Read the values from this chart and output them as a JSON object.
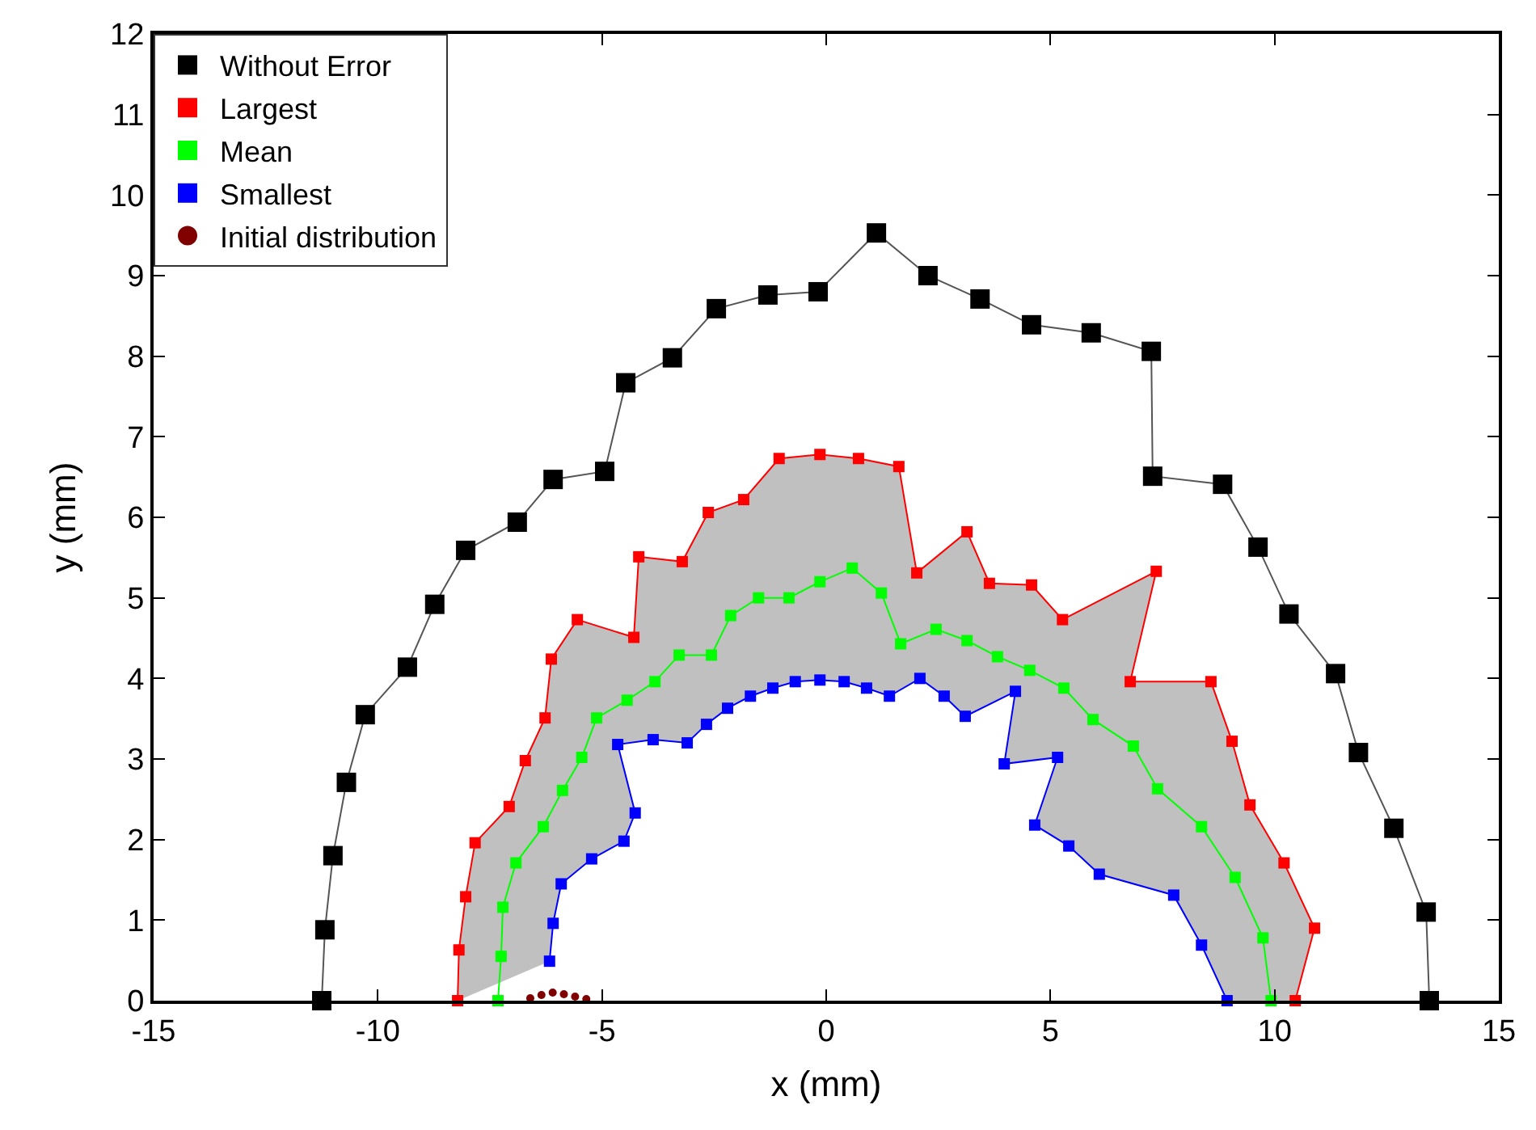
{
  "chart_data": {
    "type": "line",
    "xlabel": "x (mm)",
    "ylabel": "y (mm)",
    "xlim": [
      -15,
      15
    ],
    "xticks": [
      -15,
      -10,
      -5,
      0,
      5,
      10,
      15
    ],
    "ylim": [
      0,
      12
    ],
    "yticks": [
      0,
      1,
      2,
      3,
      4,
      5,
      6,
      7,
      8,
      9,
      10,
      11,
      12
    ],
    "legend": "top left",
    "marker": "square",
    "line_style": "solid",
    "series": [
      {
        "name": "Without Error",
        "color": "#000000",
        "x": [
          -11.25,
          -11.18,
          -11.0,
          -10.7,
          -10.28,
          -9.34,
          -8.73,
          -8.04,
          -6.89,
          -6.09,
          -4.94,
          -4.47,
          -3.43,
          -2.45,
          -1.3,
          -0.18,
          1.12,
          2.27,
          3.43,
          4.58,
          5.91,
          7.25,
          7.28,
          8.84,
          9.63,
          10.32,
          11.36,
          11.87,
          12.66,
          13.38,
          13.45
        ],
        "values": [
          0,
          0.88,
          1.8,
          2.71,
          3.55,
          4.14,
          4.92,
          5.59,
          5.94,
          6.47,
          6.57,
          7.67,
          7.98,
          8.59,
          8.76,
          8.8,
          9.53,
          9.0,
          8.71,
          8.39,
          8.29,
          8.06,
          6.51,
          6.41,
          5.63,
          4.8,
          4.06,
          3.08,
          2.14,
          1.1,
          0
        ]
      },
      {
        "name": "Largest",
        "color": "#ff0000",
        "x": [
          -8.22,
          -8.19,
          -8.04,
          -7.83,
          -7.07,
          -6.71,
          -6.27,
          -6.13,
          -5.55,
          -4.29,
          -4.18,
          -3.21,
          -2.63,
          -1.84,
          -1.05,
          -0.14,
          0.72,
          1.62,
          2.02,
          3.14,
          3.64,
          4.58,
          5.27,
          7.36,
          6.78,
          8.58,
          9.05,
          9.45,
          10.21,
          10.89,
          10.46
        ],
        "values": [
          0,
          0.63,
          1.29,
          1.96,
          2.41,
          2.98,
          3.51,
          4.24,
          4.73,
          4.51,
          5.51,
          5.45,
          6.06,
          6.22,
          6.73,
          6.78,
          6.73,
          6.63,
          5.31,
          5.82,
          5.18,
          5.16,
          4.73,
          5.33,
          3.96,
          3.96,
          3.22,
          2.43,
          1.71,
          0.9,
          0
        ]
      },
      {
        "name": "Mean",
        "color": "#00ff00",
        "x": [
          -7.32,
          -7.25,
          -7.21,
          -6.92,
          -6.31,
          -5.88,
          -5.45,
          -5.12,
          -4.44,
          -3.82,
          -3.28,
          -2.56,
          -2.13,
          -1.51,
          -0.83,
          -0.14,
          0.58,
          1.23,
          1.66,
          2.45,
          3.14,
          3.82,
          4.54,
          5.3,
          5.95,
          6.85,
          7.39,
          8.37,
          9.12,
          9.74,
          9.92
        ],
        "values": [
          0,
          0.55,
          1.16,
          1.71,
          2.16,
          2.61,
          3.02,
          3.51,
          3.73,
          3.96,
          4.29,
          4.29,
          4.78,
          5.0,
          5.0,
          5.2,
          5.37,
          5.06,
          4.43,
          4.61,
          4.47,
          4.27,
          4.1,
          3.88,
          3.49,
          3.16,
          2.63,
          2.16,
          1.53,
          0.78,
          0
        ]
      },
      {
        "name": "Smallest",
        "color": "#0000ff",
        "x": [
          -6.17,
          -6.09,
          -5.91,
          -5.23,
          -4.51,
          -4.26,
          -4.65,
          -3.86,
          -3.1,
          -2.67,
          -2.2,
          -1.69,
          -1.19,
          -0.69,
          -0.14,
          0.4,
          0.9,
          1.41,
          2.09,
          2.63,
          3.1,
          4.22,
          3.97,
          5.16,
          4.65,
          5.41,
          6.09,
          7.75,
          8.37,
          8.94
        ],
        "values": [
          0.49,
          0.96,
          1.45,
          1.76,
          1.98,
          2.33,
          3.18,
          3.24,
          3.2,
          3.43,
          3.63,
          3.78,
          3.88,
          3.96,
          3.98,
          3.96,
          3.88,
          3.78,
          4.0,
          3.78,
          3.53,
          3.84,
          2.94,
          3.02,
          2.18,
          1.92,
          1.57,
          1.31,
          0.69,
          0
        ]
      },
      {
        "name": "Initial distribution",
        "type": "scatter",
        "marker": "circle",
        "color": "#800000",
        "x": [
          -6.6,
          -6.35,
          -6.1,
          -5.85,
          -5.6,
          -5.35
        ],
        "values": [
          0.03,
          0.07,
          0.1,
          0.08,
          0.05,
          0.02
        ]
      }
    ]
  }
}
